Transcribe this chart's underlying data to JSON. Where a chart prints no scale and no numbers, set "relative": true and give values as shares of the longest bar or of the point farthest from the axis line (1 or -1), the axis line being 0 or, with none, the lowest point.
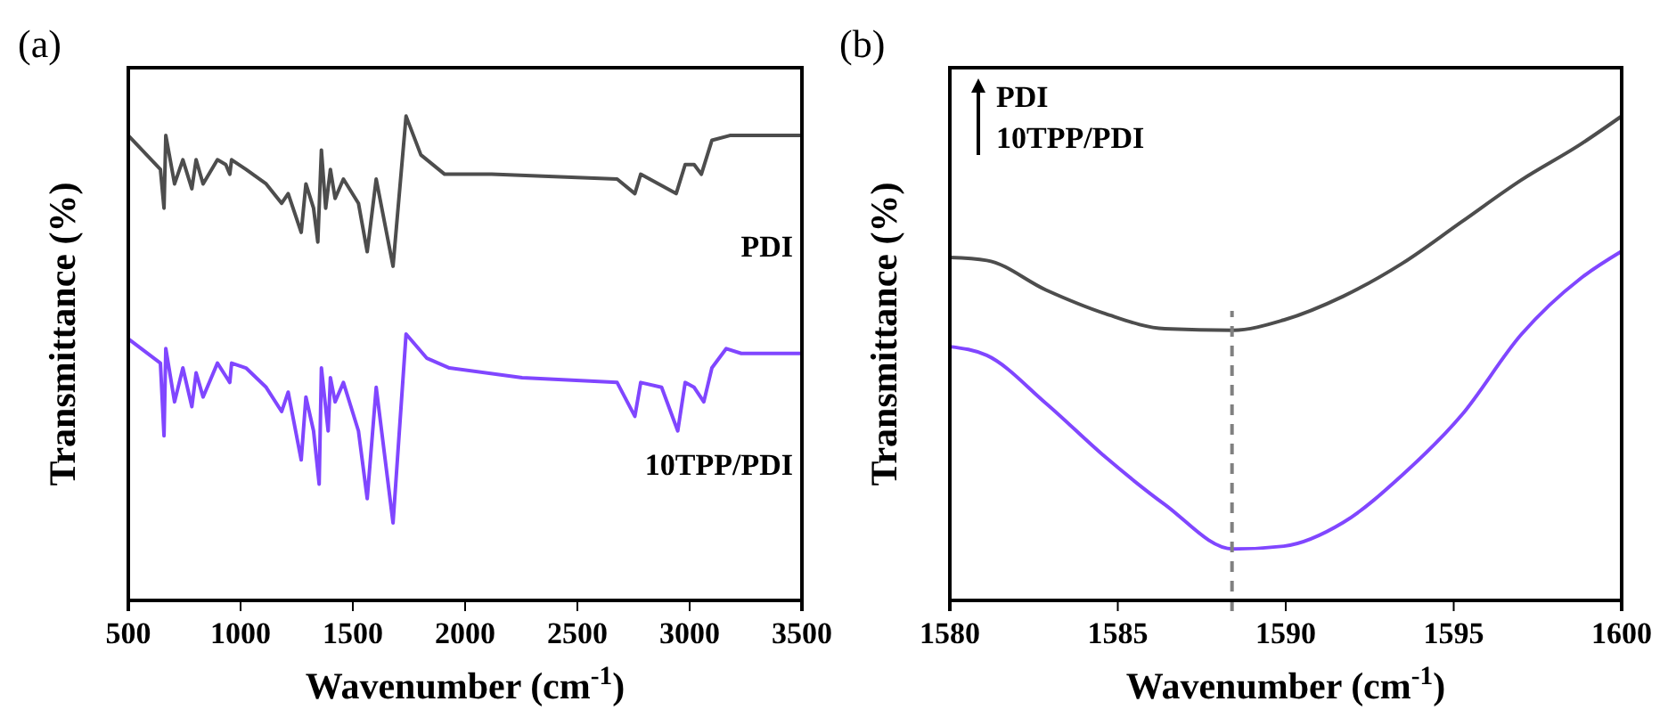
{
  "chart_data": [
    {
      "type": "line",
      "title": "(a)",
      "xlabel": "Wavenumber (cm$^{-1}$)",
      "ylabel": "Transmittance (%)",
      "relative": true,
      "xlim": [
        500,
        3500
      ],
      "xticks": [
        500,
        1000,
        1500,
        2000,
        2500,
        3000,
        3500
      ],
      "legend": false,
      "series": [
        {
          "name": "PDI",
          "color": "#4d4d4d",
          "x": [
            500,
            643,
            659,
            667,
            706,
            743,
            783,
            802,
            833,
            897,
            934,
            952,
            960,
            1024,
            1114,
            1183,
            1212,
            1270,
            1291,
            1325,
            1344,
            1360,
            1379,
            1400,
            1421,
            1458,
            1525,
            1564,
            1604,
            1679,
            1737,
            1803,
            1909,
            2118,
            2677,
            2756,
            2782,
            2940,
            2980,
            3020,
            3052,
            3099,
            3179,
            3500
          ],
          "values": [
            0.96,
            0.89,
            0.81,
            0.96,
            0.86,
            0.91,
            0.85,
            0.91,
            0.86,
            0.91,
            0.9,
            0.88,
            0.91,
            0.89,
            0.86,
            0.82,
            0.84,
            0.76,
            0.86,
            0.81,
            0.74,
            0.93,
            0.81,
            0.89,
            0.83,
            0.87,
            0.82,
            0.72,
            0.87,
            0.69,
            1.0,
            0.92,
            0.88,
            0.88,
            0.87,
            0.84,
            0.88,
            0.84,
            0.9,
            0.9,
            0.88,
            0.95,
            0.96,
            0.96
          ]
        },
        {
          "name": "10TPP/PDI",
          "color": "#8046ff",
          "x": [
            500,
            643,
            659,
            667,
            706,
            743,
            783,
            802,
            833,
            897,
            952,
            960,
            1024,
            1114,
            1183,
            1212,
            1270,
            1291,
            1325,
            1350,
            1360,
            1390,
            1400,
            1421,
            1458,
            1525,
            1564,
            1604,
            1679,
            1737,
            1830,
            1930,
            2254,
            2677,
            2756,
            2782,
            2875,
            2947,
            2980,
            3020,
            3063,
            3099,
            3163,
            3230,
            3500
          ],
          "values": [
            0.54,
            0.49,
            0.34,
            0.52,
            0.41,
            0.48,
            0.4,
            0.47,
            0.42,
            0.49,
            0.45,
            0.49,
            0.48,
            0.44,
            0.39,
            0.43,
            0.29,
            0.42,
            0.35,
            0.24,
            0.48,
            0.35,
            0.46,
            0.41,
            0.45,
            0.35,
            0.21,
            0.44,
            0.16,
            0.55,
            0.5,
            0.48,
            0.46,
            0.45,
            0.38,
            0.45,
            0.44,
            0.35,
            0.45,
            0.44,
            0.41,
            0.48,
            0.52,
            0.51,
            0.51
          ]
        }
      ]
    },
    {
      "type": "line",
      "title": "(b)",
      "xlabel": "Wavenumber (cm$^{-1}$)",
      "ylabel": "Transmittance (%)",
      "relative": true,
      "xlim": [
        1580,
        1600
      ],
      "xticks": [
        1580,
        1585,
        1590,
        1595,
        1600
      ],
      "annotations": [
        "PDI",
        "10TPP/PDI"
      ],
      "ref_lines": [
        {
          "axis": "x",
          "value": 1588.4,
          "color": "#808080",
          "line_style": "dashed"
        }
      ],
      "series": [
        {
          "color": "#4d4d4d",
          "x": [
            1580,
            1581.1,
            1582.86,
            1584.63,
            1586.4,
            1588.43,
            1589.94,
            1591.71,
            1593.47,
            1595.24,
            1597.01,
            1598.78,
            1600
          ],
          "values": [
            0.708,
            0.702,
            0.641,
            0.592,
            0.561,
            0.558,
            0.579,
            0.628,
            0.696,
            0.782,
            0.868,
            0.942,
            1.0
          ]
        },
        {
          "color": "#8046ff",
          "x": [
            1580,
            1581.1,
            1582.86,
            1584.63,
            1586.4,
            1588.43,
            1589.94,
            1591.71,
            1593.47,
            1595.24,
            1597.01,
            1598.78,
            1600
          ],
          "values": [
            0.524,
            0.506,
            0.407,
            0.296,
            0.198,
            0.106,
            0.112,
            0.161,
            0.259,
            0.383,
            0.549,
            0.665,
            0.721
          ]
        }
      ]
    }
  ]
}
